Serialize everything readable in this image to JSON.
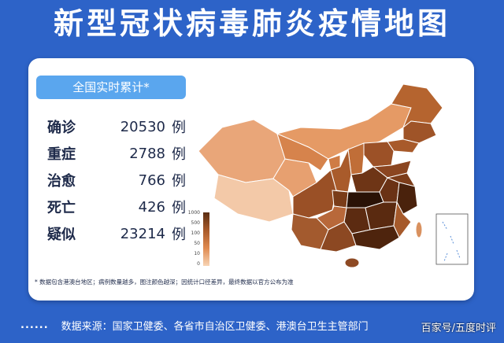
{
  "title": "新型冠状病毒肺炎疫情地图",
  "badge": "全国实时累计*",
  "stats": [
    {
      "label": "确诊",
      "value": "20530",
      "unit": "例"
    },
    {
      "label": "重症",
      "value": "2788",
      "unit": "例"
    },
    {
      "label": "治愈",
      "value": "766",
      "unit": "例"
    },
    {
      "label": "死亡",
      "value": "426",
      "unit": "例"
    },
    {
      "label": "疑似",
      "value": "23214",
      "unit": "例"
    }
  ],
  "legend": {
    "ticks": [
      "1000",
      "500",
      "100",
      "50",
      "10",
      "0"
    ],
    "colors": [
      "#5a2d12",
      "#a85a2a",
      "#e08a50",
      "#f7d4b4"
    ]
  },
  "footnote": "* 数据包含港澳台地区；病例数量越多，图注颜色越深；因统计口径差异，最终数据以官方公布为准",
  "source": {
    "dots": "......",
    "text": "数据来源：国家卫健委、各省市自治区卫健委、港澳台卫生主管部门"
  },
  "watermark": "百家号/五度时评",
  "colors": {
    "background": "#2d63c8",
    "badge": "#5aa6ee",
    "map_dark": "#5a2d12",
    "map_light": "#f7d4b4"
  }
}
